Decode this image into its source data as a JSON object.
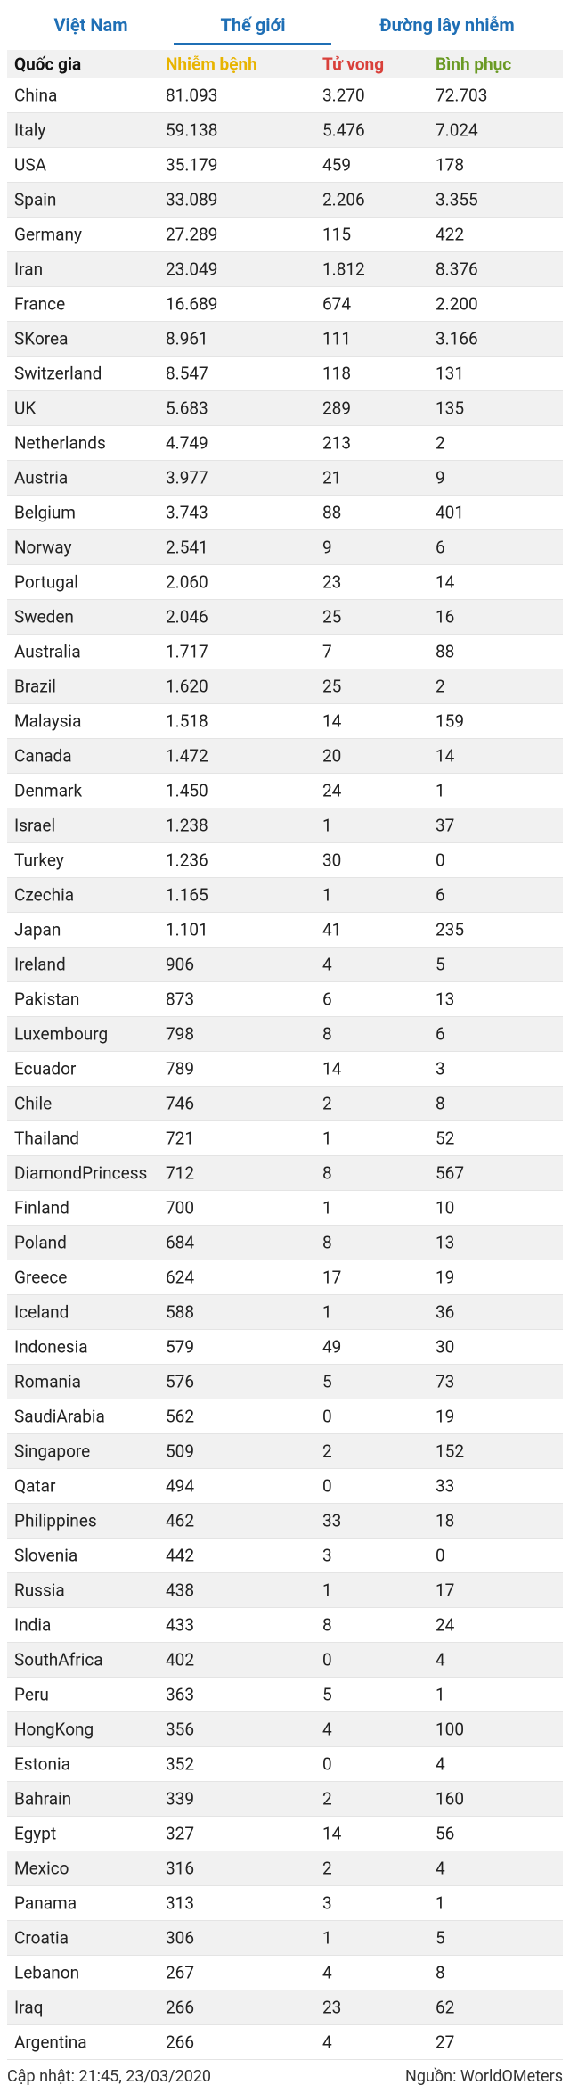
{
  "tabs": [
    "Việt Nam",
    "Thế giới",
    "Đường lây nhiễm"
  ],
  "table": {
    "columns": [
      "Quốc gia",
      "Nhiễm bệnh",
      "Tử vong",
      "Bình phục"
    ],
    "rows": [
      [
        "China",
        "81.093",
        "3.270",
        "72.703"
      ],
      [
        "Italy",
        "59.138",
        "5.476",
        "7.024"
      ],
      [
        "USA",
        "35.179",
        "459",
        "178"
      ],
      [
        "Spain",
        "33.089",
        "2.206",
        "3.355"
      ],
      [
        "Germany",
        "27.289",
        "115",
        "422"
      ],
      [
        "Iran",
        "23.049",
        "1.812",
        "8.376"
      ],
      [
        "France",
        "16.689",
        "674",
        "2.200"
      ],
      [
        "SKorea",
        "8.961",
        "111",
        "3.166"
      ],
      [
        "Switzerland",
        "8.547",
        "118",
        "131"
      ],
      [
        "UK",
        "5.683",
        "289",
        "135"
      ],
      [
        "Netherlands",
        "4.749",
        "213",
        "2"
      ],
      [
        "Austria",
        "3.977",
        "21",
        "9"
      ],
      [
        "Belgium",
        "3.743",
        "88",
        "401"
      ],
      [
        "Norway",
        "2.541",
        "9",
        "6"
      ],
      [
        "Portugal",
        "2.060",
        "23",
        "14"
      ],
      [
        "Sweden",
        "2.046",
        "25",
        "16"
      ],
      [
        "Australia",
        "1.717",
        "7",
        "88"
      ],
      [
        "Brazil",
        "1.620",
        "25",
        "2"
      ],
      [
        "Malaysia",
        "1.518",
        "14",
        "159"
      ],
      [
        "Canada",
        "1.472",
        "20",
        "14"
      ],
      [
        "Denmark",
        "1.450",
        "24",
        "1"
      ],
      [
        "Israel",
        "1.238",
        "1",
        "37"
      ],
      [
        "Turkey",
        "1.236",
        "30",
        "0"
      ],
      [
        "Czechia",
        "1.165",
        "1",
        "6"
      ],
      [
        "Japan",
        "1.101",
        "41",
        "235"
      ],
      [
        "Ireland",
        "906",
        "4",
        "5"
      ],
      [
        "Pakistan",
        "873",
        "6",
        "13"
      ],
      [
        "Luxembourg",
        "798",
        "8",
        "6"
      ],
      [
        "Ecuador",
        "789",
        "14",
        "3"
      ],
      [
        "Chile",
        "746",
        "2",
        "8"
      ],
      [
        "Thailand",
        "721",
        "1",
        "52"
      ],
      [
        "DiamondPrincess",
        "712",
        "8",
        "567"
      ],
      [
        "Finland",
        "700",
        "1",
        "10"
      ],
      [
        "Poland",
        "684",
        "8",
        "13"
      ],
      [
        "Greece",
        "624",
        "17",
        "19"
      ],
      [
        "Iceland",
        "588",
        "1",
        "36"
      ],
      [
        "Indonesia",
        "579",
        "49",
        "30"
      ],
      [
        "Romania",
        "576",
        "5",
        "73"
      ],
      [
        "SaudiArabia",
        "562",
        "0",
        "19"
      ],
      [
        "Singapore",
        "509",
        "2",
        "152"
      ],
      [
        "Qatar",
        "494",
        "0",
        "33"
      ],
      [
        "Philippines",
        "462",
        "33",
        "18"
      ],
      [
        "Slovenia",
        "442",
        "3",
        "0"
      ],
      [
        "Russia",
        "438",
        "1",
        "17"
      ],
      [
        "India",
        "433",
        "8",
        "24"
      ],
      [
        "SouthAfrica",
        "402",
        "0",
        "4"
      ],
      [
        "Peru",
        "363",
        "5",
        "1"
      ],
      [
        "HongKong",
        "356",
        "4",
        "100"
      ],
      [
        "Estonia",
        "352",
        "0",
        "4"
      ],
      [
        "Bahrain",
        "339",
        "2",
        "160"
      ],
      [
        "Egypt",
        "327",
        "14",
        "56"
      ],
      [
        "Mexico",
        "316",
        "2",
        "4"
      ],
      [
        "Panama",
        "313",
        "3",
        "1"
      ],
      [
        "Croatia",
        "306",
        "1",
        "5"
      ],
      [
        "Lebanon",
        "267",
        "4",
        "8"
      ],
      [
        "Iraq",
        "266",
        "23",
        "62"
      ],
      [
        "Argentina",
        "266",
        "4",
        "27"
      ]
    ]
  },
  "footer": {
    "updated": "Cập nhật: 21:45, 23/03/2020",
    "source": "Nguồn: WorldOMeters"
  }
}
